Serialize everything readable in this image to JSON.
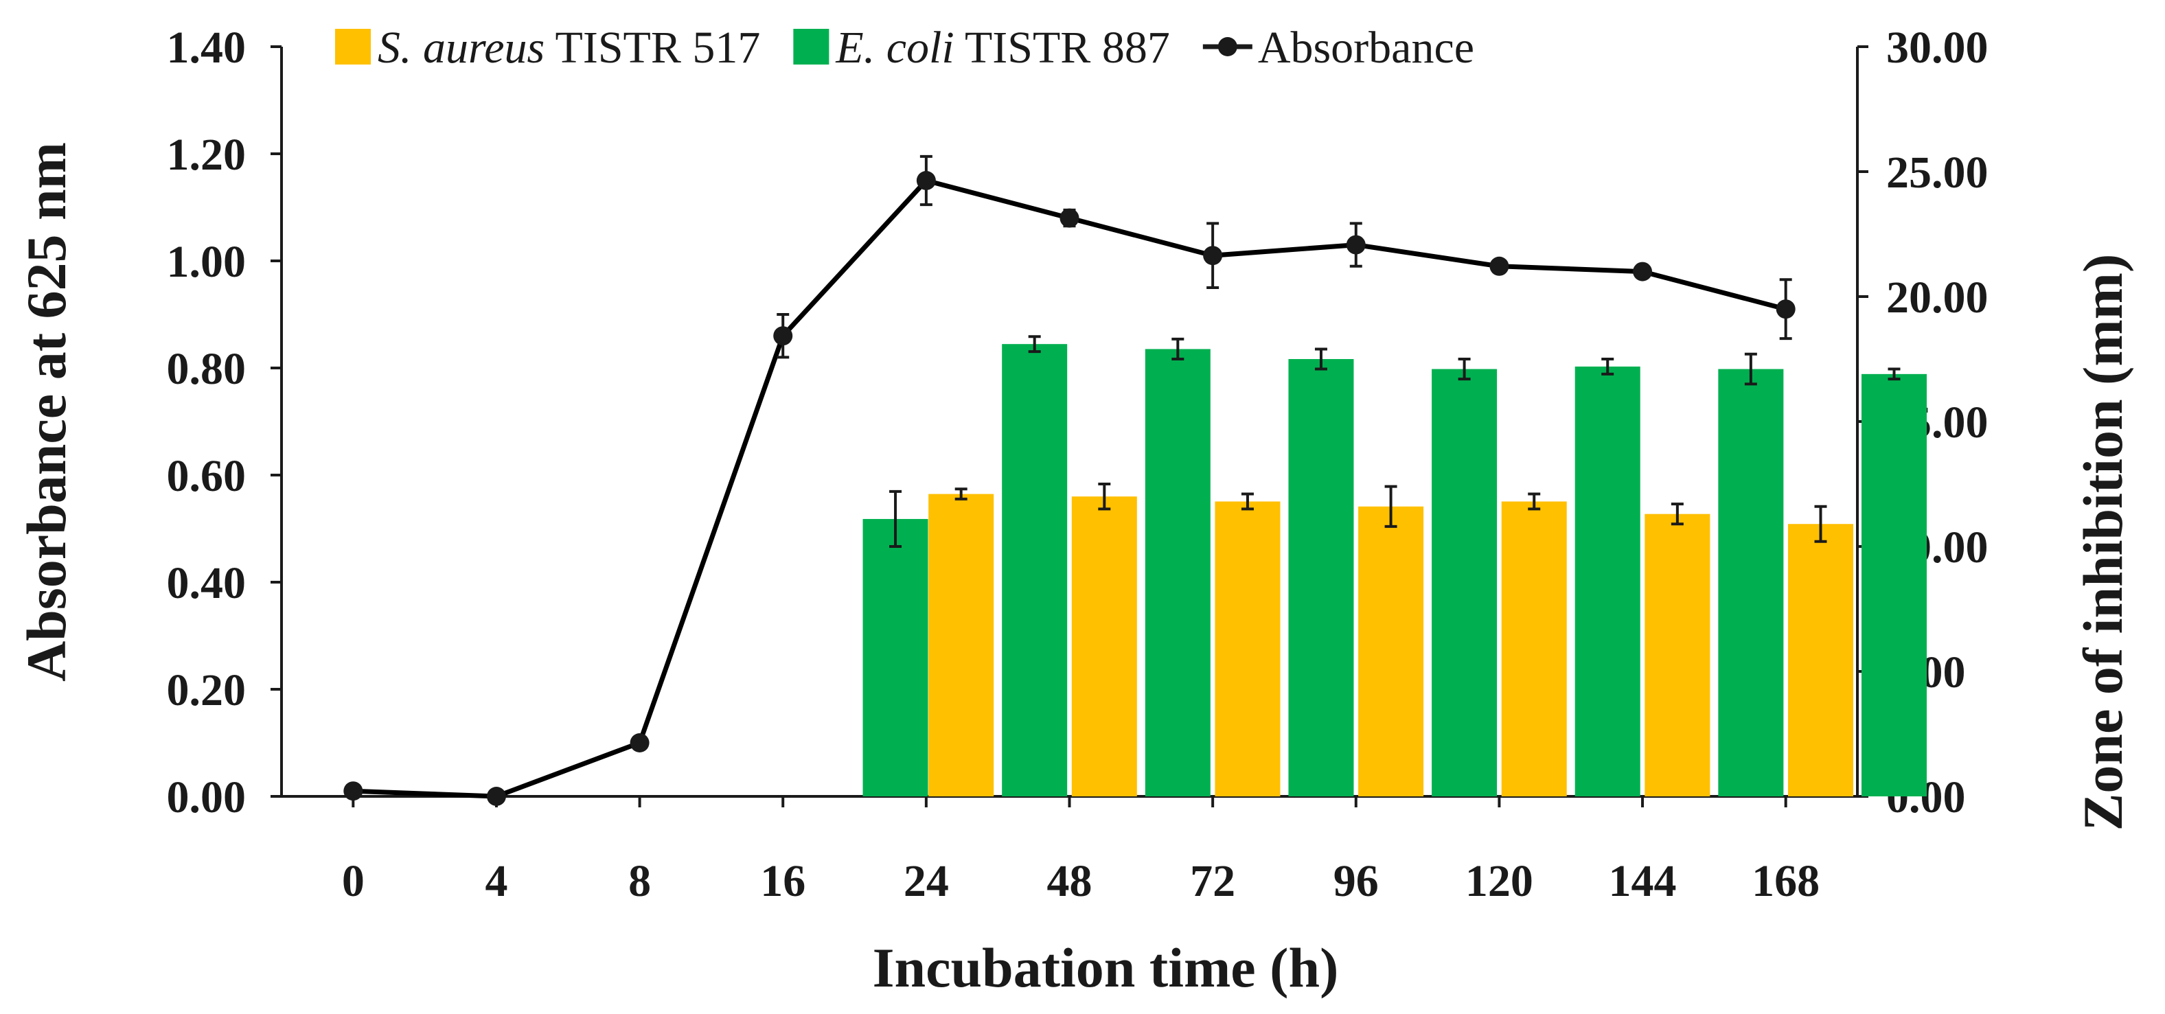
{
  "chart_data": {
    "type": "bar",
    "categories": [
      "0",
      "4",
      "8",
      "16",
      "24",
      "48",
      "72",
      "96",
      "120",
      "144",
      "168"
    ],
    "xlabel": "Incubation time (h)",
    "ylabel_left": "Absorbance at 625 nm",
    "ylabel_right": "Zone of inhibition (mm)",
    "ylim_left": [
      0,
      1.4
    ],
    "ylim_right": [
      0,
      30
    ],
    "yticks_left": [
      "0.00",
      "0.20",
      "0.40",
      "0.60",
      "0.80",
      "1.00",
      "1.20",
      "1.40"
    ],
    "yticks_right": [
      "0.00",
      "5.00",
      "10.00",
      "15.00",
      "20.00",
      "25.00",
      "30.00"
    ],
    "grid": false,
    "legend_position": "top",
    "legend": [
      {
        "italic": "S. aureus",
        "rest": " TISTR 517",
        "color": "#FFC000",
        "kind": "bar"
      },
      {
        "italic": "E. coli",
        "rest": " TISTR 887",
        "color": "#00B050",
        "kind": "bar"
      },
      {
        "italic": "",
        "rest": "Absorbance",
        "color": "#000000",
        "kind": "line"
      }
    ],
    "series": [
      {
        "key": "s_aureus",
        "axis": "right",
        "kind": "bar",
        "color": "#FFC000",
        "values": [
          null,
          null,
          null,
          null,
          12.1,
          12.0,
          11.8,
          11.6,
          11.8,
          11.3,
          10.9
        ],
        "errors": [
          null,
          null,
          null,
          null,
          0.2,
          0.5,
          0.3,
          0.8,
          0.3,
          0.4,
          0.7
        ]
      },
      {
        "key": "e_coli",
        "axis": "right",
        "kind": "bar",
        "color": "#00B050",
        "values": [
          null,
          null,
          null,
          11.1,
          18.1,
          17.9,
          17.5,
          17.1,
          17.2,
          17.1,
          16.9
        ],
        "errors": [
          null,
          null,
          null,
          1.1,
          0.3,
          0.4,
          0.4,
          0.4,
          0.3,
          0.6,
          0.2
        ]
      },
      {
        "key": "absorbance",
        "axis": "left",
        "kind": "line",
        "color": "#000000",
        "values": [
          0.01,
          0.0,
          0.1,
          0.86,
          1.15,
          1.08,
          1.01,
          1.03,
          0.99,
          0.98,
          0.91
        ],
        "errors": [
          0.005,
          0.005,
          0.01,
          0.04,
          0.045,
          0.015,
          0.06,
          0.04,
          0.01,
          0.01,
          0.055
        ]
      }
    ]
  }
}
